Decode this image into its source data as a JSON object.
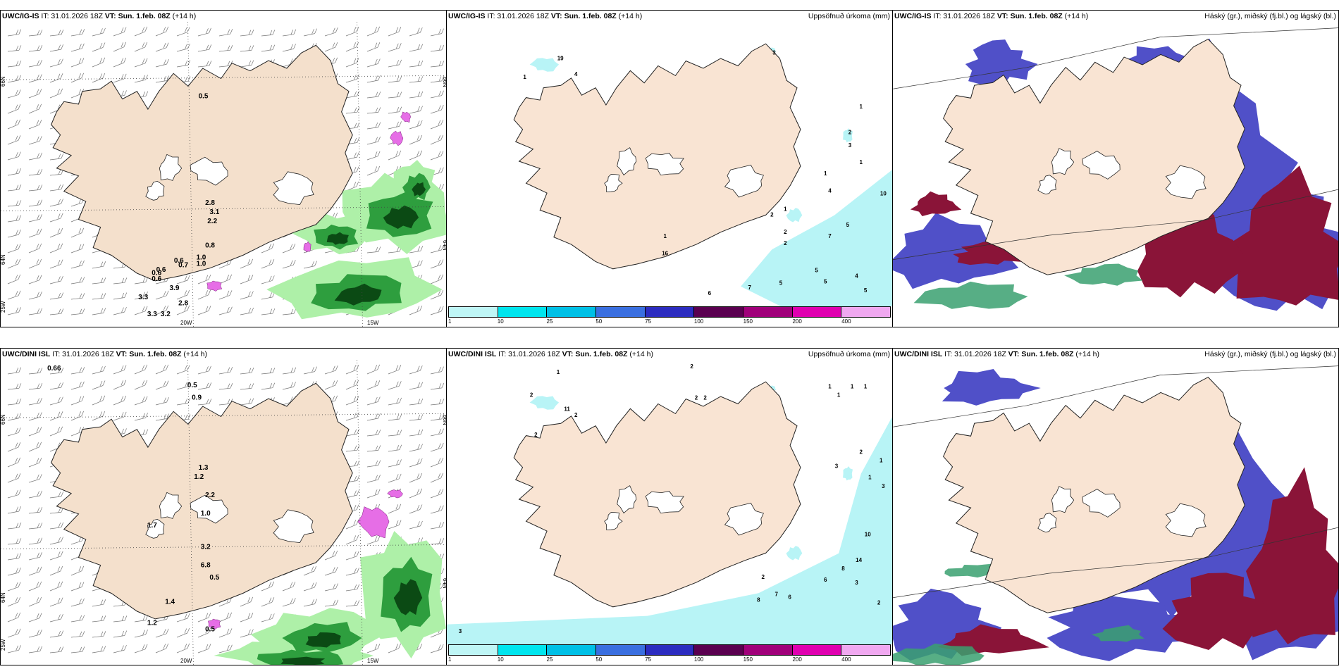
{
  "rows": [
    {
      "model": "UWC/IG-IS",
      "panels": [
        {
          "type": "wind",
          "model": "UWC/IG-IS",
          "it": "IT: 31.01.2026 18Z",
          "vt_label": "VT:",
          "vt": "Sun. 1.feb. 08Z",
          "lead": "(+14 h)",
          "right": "",
          "labels": [
            "0.5",
            "2.8",
            "3.1",
            "2.2",
            "0.6",
            "0.7",
            "0.6",
            "0.6",
            "0.6",
            "0.8",
            "1.0",
            "1.0",
            "3.9",
            "3.3",
            "2.8",
            "3.3",
            "3.2"
          ]
        },
        {
          "type": "precip",
          "model": "UWC/IG-IS",
          "it": "IT: 31.01.2026 18Z",
          "vt_label": "VT:",
          "vt": "Sun. 1.feb. 08Z",
          "lead": "(+14 h)",
          "right": "Uppsöfnuð úrkoma (mm)",
          "labels": [
            "19",
            "1",
            "4",
            "3",
            "1",
            "2",
            "3",
            "1",
            "1",
            "4",
            "1",
            "2",
            "10",
            "5",
            "7",
            "2",
            "2",
            "5",
            "5",
            "4",
            "5",
            "5",
            "6",
            "7",
            "1",
            "16"
          ]
        },
        {
          "type": "cloud",
          "model": "UWC/IG-IS",
          "it": "IT: 31.01.2026 18Z",
          "vt_label": "VT:",
          "vt": "Sun. 1.feb. 08Z",
          "lead": "(+14 h)",
          "right": "Háský (gr.), miðský (fj.bl.) og lágský (bl.)",
          "labels": []
        }
      ]
    },
    {
      "model": "UWC/DINI ISL",
      "panels": [
        {
          "type": "wind",
          "model": "UWC/DINI ISL",
          "it": "IT: 31.01.2026 18Z",
          "vt_label": "VT:",
          "vt": "Sun. 1.feb. 08Z",
          "lead": "(+14 h)",
          "right": "",
          "labels": [
            "0.66",
            "0.5",
            "0.9",
            "1.3",
            "1.2",
            "2.2",
            "1.0",
            "1.7",
            "3.2",
            "6.8",
            "0.5",
            "1.4",
            "1.2",
            "0.5"
          ]
        },
        {
          "type": "precip",
          "model": "UWC/DINI ISL",
          "it": "IT: 31.01.2026 18Z",
          "vt_label": "VT:",
          "vt": "Sun. 1.feb. 08Z",
          "lead": "(+14 h)",
          "right": "Uppsöfnuð úrkoma (mm)",
          "labels": [
            "1",
            "2",
            "2",
            "2",
            "11",
            "2",
            "2",
            "2",
            "1",
            "1",
            "1",
            "1",
            "3",
            "2",
            "1",
            "1",
            "3",
            "10",
            "14",
            "8",
            "6",
            "3",
            "2",
            "2",
            "8",
            "7",
            "6",
            "3"
          ]
        },
        {
          "type": "cloud",
          "model": "UWC/DINI ISL",
          "it": "IT: 31.01.2026 18Z",
          "vt_label": "VT:",
          "vt": "Sun. 1.feb. 08Z",
          "lead": "(+14 h)",
          "right": "Háský (gr.), miðský (fj.bl.) og lágský (bl.)",
          "labels": []
        }
      ]
    }
  ],
  "axes": {
    "lon": [
      "20W",
      "15W"
    ],
    "lat_top": [
      "66N",
      "66N"
    ],
    "lat_mid": [
      "64N",
      "64N"
    ],
    "lat_bot": [
      "25W"
    ]
  },
  "colorbar": {
    "ticks": [
      "1",
      "10",
      "25",
      "50",
      "75",
      "100",
      "150",
      "200",
      "400"
    ],
    "colors": [
      "#bff6f6",
      "#00e5ee",
      "#00c0e6",
      "#3a6fe0",
      "#2c2cc0",
      "#5a0050",
      "#a0007a",
      "#e000b0",
      "#f0a8f0"
    ]
  },
  "colors": {
    "land": "#f9e4d3",
    "land_wind": "#f4e0cc",
    "wind_green_light": "#aef0a8",
    "wind_green_mid": "#2e9e3e",
    "wind_green_dark": "#0b4a14",
    "pink": "#e66ee6",
    "cyan": "#b8f4f6",
    "cloud_blue": "#5050c8",
    "cloud_red": "#8a1438",
    "cloud_green": "#3aa070"
  }
}
